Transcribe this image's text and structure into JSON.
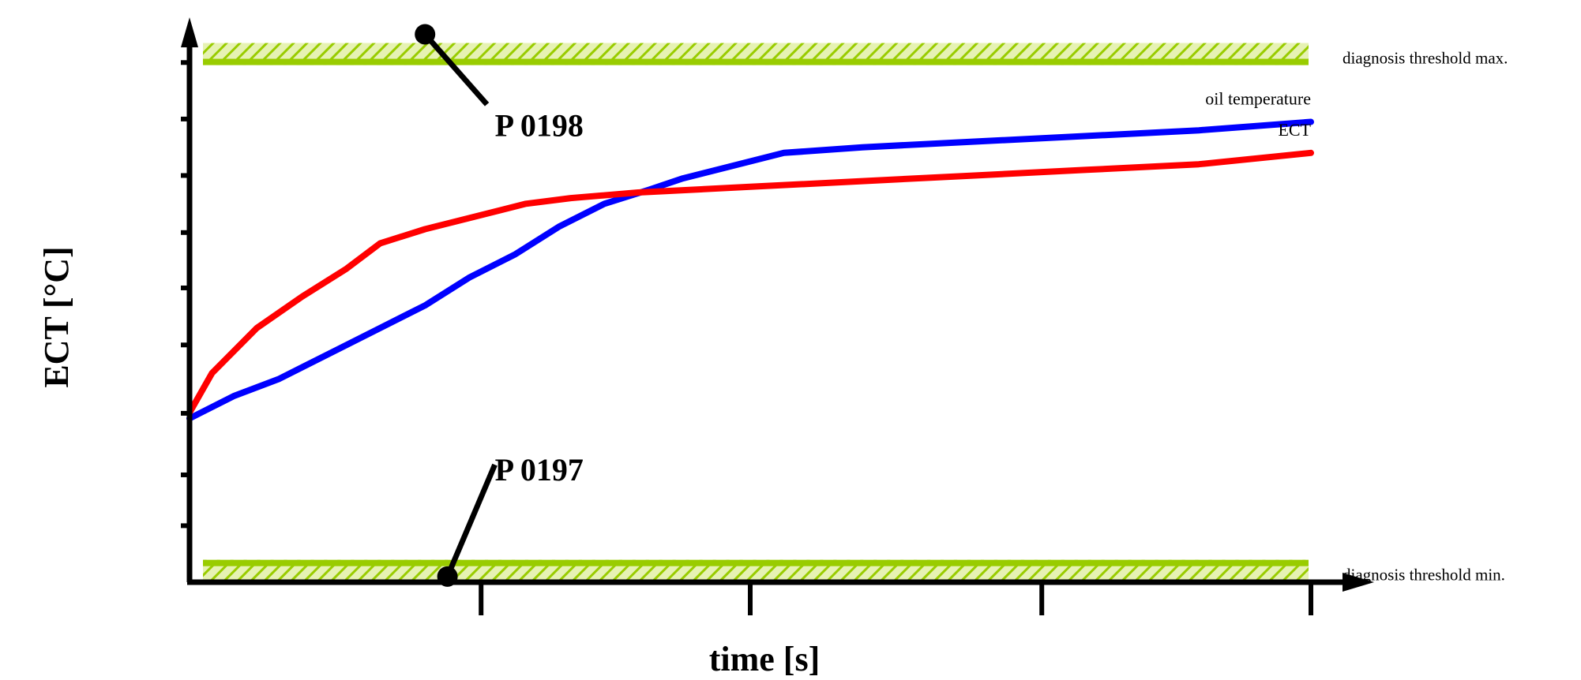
{
  "chart_data": {
    "type": "line",
    "title": "",
    "xlabel": "time [s]",
    "ylabel": "ECT [°C]",
    "grid": false,
    "xlim": [
      0,
      10
    ],
    "ylim": [
      0,
      10
    ],
    "x_ticks": [
      2.6,
      5.0,
      7.6,
      10.0
    ],
    "y_ticks": [
      1.0,
      1.9,
      2.99,
      4.2,
      5.21,
      6.19,
      7.2,
      8.2,
      9.2
    ],
    "series": [
      {
        "name": "oil temperature",
        "color": "#0000ff",
        "x": [
          0,
          0.4,
          0.8,
          1.3,
          1.7,
          2.1,
          2.5,
          2.9,
          3.3,
          3.7,
          4.1,
          4.4,
          4.8,
          5.3,
          6.0,
          7.0,
          8.0,
          9.0,
          10.0
        ],
        "y": [
          2.9,
          3.3,
          3.6,
          4.1,
          4.5,
          4.9,
          5.4,
          5.8,
          6.3,
          6.7,
          6.95,
          7.15,
          7.35,
          7.6,
          7.7,
          7.8,
          7.9,
          8.0,
          8.15
        ]
      },
      {
        "name": "ECT",
        "color": "#ff0000",
        "x": [
          0,
          0.2,
          0.6,
          1.0,
          1.4,
          1.7,
          2.1,
          2.6,
          3.0,
          3.4,
          4.0,
          5.0,
          6.0,
          7.0,
          8.0,
          9.0,
          10.0
        ],
        "y": [
          3.0,
          3.7,
          4.5,
          5.05,
          5.55,
          6.0,
          6.25,
          6.5,
          6.7,
          6.8,
          6.9,
          7.0,
          7.1,
          7.2,
          7.3,
          7.4,
          7.6
        ]
      }
    ],
    "thresholds": [
      {
        "label": "diagnosis threshold max.",
        "y": 9.35,
        "color": "#99cc00"
      },
      {
        "label": "diagnosis threshold min.",
        "y": 0.2,
        "color": "#99cc00"
      }
    ],
    "annotations": [
      {
        "text": "P 0198",
        "target_x": 2.1,
        "target_y": 9.7,
        "label_x": 2.3,
        "label_y": 7.9
      },
      {
        "text": "P 0197",
        "target_x": 2.3,
        "target_y": 0.1,
        "label_x": 2.3,
        "label_y": 1.8
      }
    ]
  }
}
